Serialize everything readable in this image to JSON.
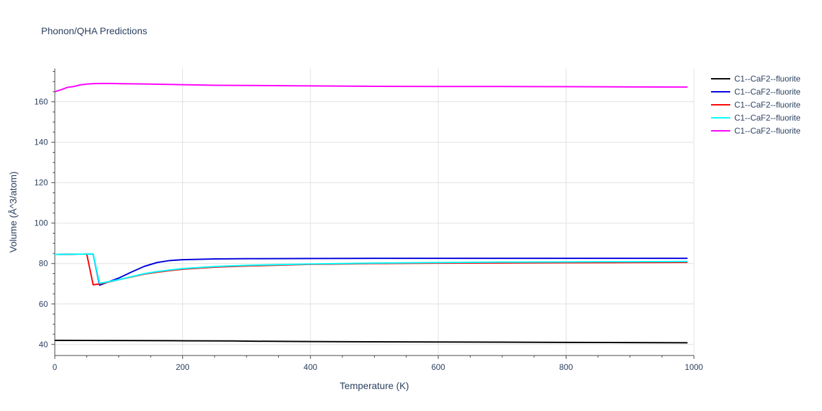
{
  "chart_data": {
    "type": "line",
    "title": "Phonon/QHA Predictions",
    "xlabel": "Temperature (K)",
    "ylabel": "Volume (Å^3/atom)",
    "xlim": [
      0,
      1000
    ],
    "ylim": [
      34.5,
      176.5
    ],
    "xticks": [
      0,
      200,
      400,
      600,
      800,
      1000
    ],
    "yticks": [
      40,
      60,
      80,
      100,
      120,
      140,
      160
    ],
    "grid": true,
    "legend_position": "top-right",
    "series": [
      {
        "name": "C1--CaF2--fluorite",
        "color": "#000000",
        "x": [
          0,
          100,
          200,
          280,
          300,
          400,
          500,
          600,
          700,
          800,
          900,
          990
        ],
        "y": [
          42.0,
          41.9,
          41.8,
          41.7,
          41.6,
          41.4,
          41.3,
          41.2,
          41.1,
          41.0,
          40.9,
          40.8
        ]
      },
      {
        "name": "C1--CaF2--fluorite",
        "color": "#0000dd",
        "x": [
          0,
          50,
          60,
          70,
          80,
          100,
          120,
          140,
          160,
          180,
          200,
          250,
          300,
          400,
          500,
          600,
          700,
          800,
          900,
          990
        ],
        "y": [
          84.5,
          84.7,
          84.7,
          69.3,
          70.5,
          72.8,
          75.8,
          78.6,
          80.5,
          81.5,
          81.9,
          82.3,
          82.4,
          82.5,
          82.6,
          82.6,
          82.6,
          82.6,
          82.6,
          82.6
        ]
      },
      {
        "name": "C1--CaF2--fluorite",
        "color": "#ff0000",
        "x": [
          0,
          50,
          60,
          70,
          80,
          100,
          120,
          140,
          160,
          180,
          200,
          250,
          300,
          400,
          500,
          600,
          700,
          800,
          900,
          990
        ],
        "y": [
          84.5,
          84.7,
          69.5,
          69.9,
          70.6,
          72.0,
          73.4,
          74.8,
          75.7,
          76.5,
          77.2,
          78.2,
          78.8,
          79.6,
          80.0,
          80.2,
          80.3,
          80.4,
          80.5,
          80.6
        ]
      },
      {
        "name": "C1--CaF2--fluorite",
        "color": "#00ffff",
        "x": [
          0,
          50,
          60,
          70,
          80,
          100,
          120,
          140,
          160,
          180,
          200,
          250,
          300,
          400,
          500,
          600,
          700,
          800,
          900,
          990
        ],
        "y": [
          84.5,
          84.7,
          84.8,
          70.2,
          70.8,
          72.0,
          73.5,
          75.0,
          76.0,
          76.8,
          77.5,
          78.5,
          79.1,
          79.8,
          80.2,
          80.5,
          80.7,
          80.8,
          80.9,
          81.0
        ]
      },
      {
        "name": "C1--CaF2--fluorite",
        "color": "#ff00ff",
        "x": [
          0,
          10,
          20,
          30,
          40,
          50,
          60,
          70,
          80,
          90,
          100,
          150,
          200,
          250,
          300,
          400,
          500,
          600,
          700,
          800,
          900,
          990
        ],
        "y": [
          165.0,
          166.0,
          167.2,
          167.6,
          168.4,
          168.8,
          169.0,
          169.1,
          169.1,
          169.1,
          169.0,
          168.8,
          168.5,
          168.2,
          168.1,
          167.9,
          167.7,
          167.6,
          167.6,
          167.5,
          167.4,
          167.3
        ]
      }
    ]
  }
}
